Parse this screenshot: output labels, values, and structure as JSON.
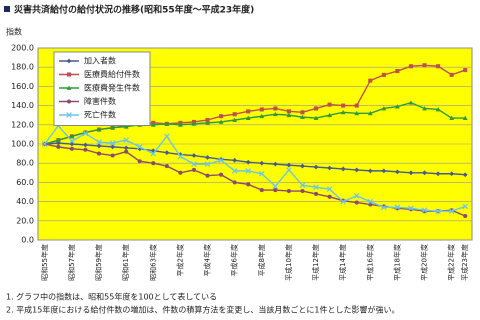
{
  "chart_data": {
    "type": "line",
    "title": "災害共済給付の給付状況の推移(昭和55年度～平成23年度)",
    "y_label": "指数",
    "categories": [
      "昭和55年度",
      null,
      "昭和57年度",
      null,
      "昭和59年度",
      null,
      "昭和61年度",
      null,
      "昭和63年度",
      null,
      "平成2年度",
      null,
      "平成4年度",
      null,
      "平成6年度",
      null,
      "平成8年度",
      null,
      "平成10年度",
      null,
      "平成12年度",
      null,
      "平成14年度",
      null,
      "平成16年度",
      null,
      "平成18年度",
      null,
      "平成20年度",
      null,
      "平成22年度",
      "平成23年度"
    ],
    "series": [
      {
        "name": "加入者数",
        "color": "#4a5a8a",
        "marker": "diamond",
        "values": [
          100,
          101,
          100,
          99,
          98,
          97,
          96,
          95,
          93,
          91,
          89,
          88,
          86,
          84,
          83,
          81,
          80,
          79,
          78,
          77,
          76,
          75,
          74,
          73,
          72,
          72,
          71,
          70,
          70,
          69,
          69,
          68
        ]
      },
      {
        "name": "医療費給付件数",
        "color": "#c0504d",
        "marker": "square",
        "values": [
          100,
          104,
          108,
          112,
          115,
          117,
          119,
          121,
          122,
          121,
          122,
          123,
          125,
          129,
          131,
          134,
          136,
          137,
          134,
          133,
          137,
          141,
          140,
          140,
          166,
          172,
          176,
          181,
          182,
          181,
          172,
          177
        ]
      },
      {
        "name": "医療費発生件数",
        "color": "#2e9b3a",
        "marker": "triangle",
        "values": [
          100,
          104,
          108,
          112,
          115,
          117,
          118,
          120,
          120,
          121,
          120,
          121,
          122,
          123,
          125,
          127,
          129,
          131,
          130,
          128,
          127,
          130,
          133,
          132,
          132,
          137,
          139,
          143,
          137,
          136,
          127,
          127
        ]
      },
      {
        "name": "障害件数",
        "color": "#8e4a6a",
        "marker": "circle",
        "values": [
          100,
          97,
          95,
          94,
          90,
          88,
          92,
          82,
          80,
          77,
          70,
          73,
          67,
          68,
          60,
          58,
          52,
          52,
          51,
          51,
          48,
          45,
          41,
          39,
          37,
          35,
          33,
          32,
          30,
          30,
          31,
          25
        ]
      },
      {
        "name": "死亡件数",
        "color": "#6cc6e6",
        "marker": "cross",
        "values": [
          100,
          119,
          103,
          111,
          102,
          101,
          104,
          97,
          90,
          108,
          87,
          79,
          79,
          83,
          72,
          72,
          69,
          56,
          73,
          57,
          55,
          53,
          40,
          46,
          40,
          34,
          34,
          33,
          31,
          30,
          30,
          35
        ]
      }
    ],
    "ylim": [
      0,
      200
    ],
    "yticks": [
      {
        "value": 0,
        "label": "0.0"
      },
      {
        "value": 20,
        "label": "20.0"
      },
      {
        "value": 40,
        "label": "40.0"
      },
      {
        "value": 60,
        "label": "60.0"
      },
      {
        "value": 80,
        "label": "80.0"
      },
      {
        "value": 100,
        "label": "100.0"
      },
      {
        "value": 120,
        "label": "120.0"
      },
      {
        "value": 140,
        "label": "140.0"
      },
      {
        "value": 160,
        "label": "160.0"
      },
      {
        "value": 180,
        "label": "180.0"
      },
      {
        "value": 200,
        "label": "200.0"
      }
    ],
    "grid": true,
    "plot_background": "#ffff00",
    "notes": [
      "1. グラフ中の指数は、昭和55年度を100として表している",
      "2. 平成15年度における給付件数の増加は、件数の積算方法を変更し、当該月数ごとに1件とした影響が強い。"
    ]
  }
}
